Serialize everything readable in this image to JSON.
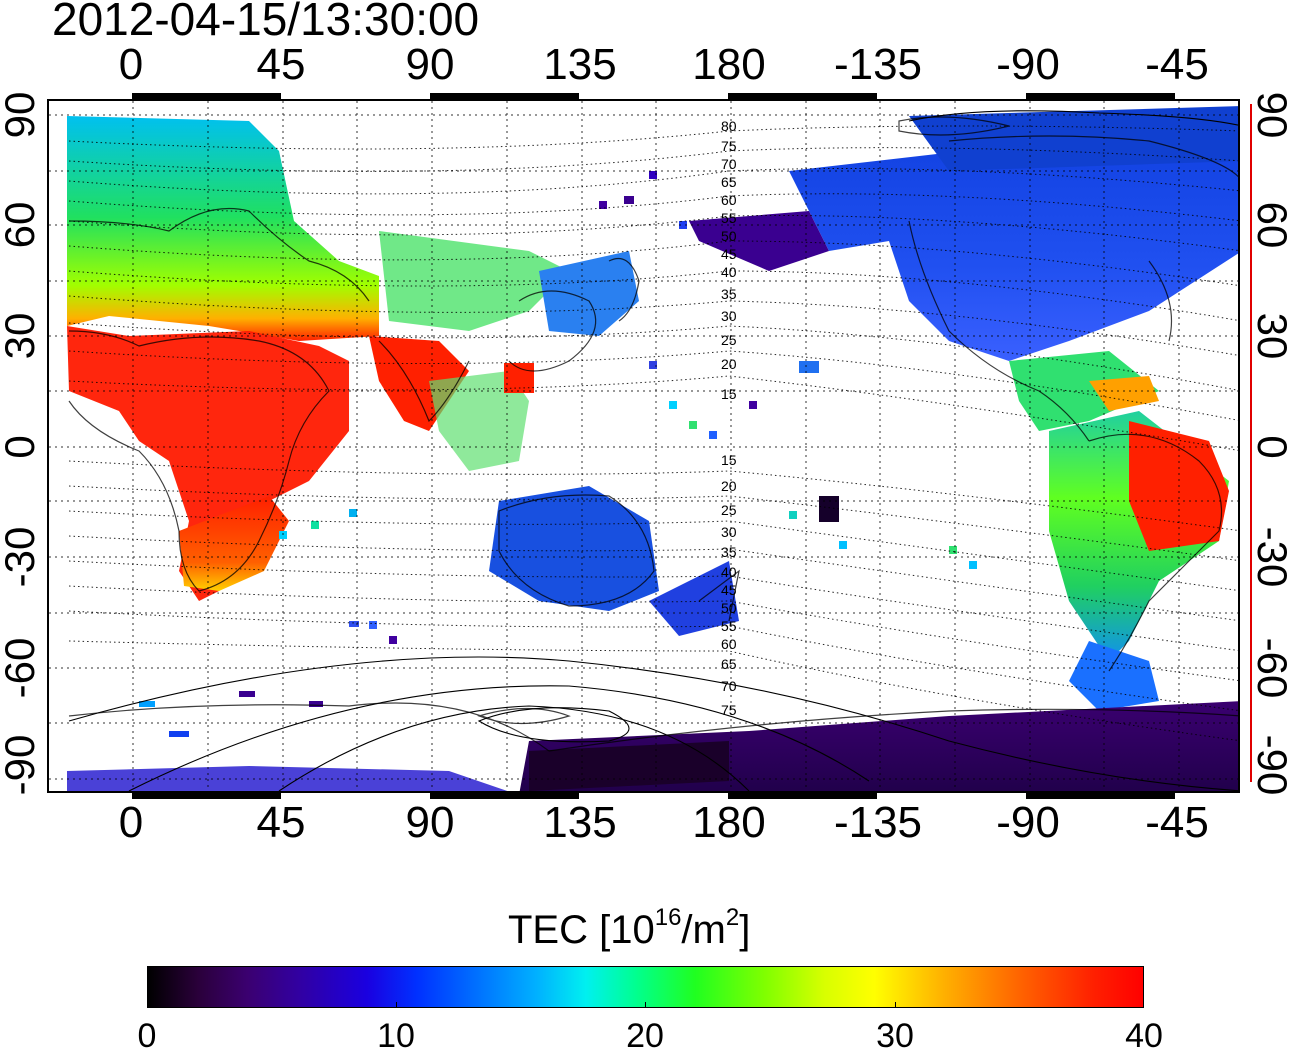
{
  "title": "2012-04-15/13:30:00",
  "lon_labels": [
    "0",
    "45",
    "90",
    "135",
    "180",
    "-135",
    "-90",
    "-45"
  ],
  "lat_labels": [
    "90",
    "60",
    "30",
    "0",
    "-30",
    "-60",
    "-90"
  ],
  "contour_labels_north": [
    "80",
    "75",
    "70",
    "65",
    "60",
    "55",
    "50",
    "45",
    "40",
    "35",
    "30",
    "25",
    "20",
    "15"
  ],
  "contour_labels_south": [
    "15",
    "20",
    "25",
    "30",
    "35",
    "40",
    "45",
    "50",
    "55",
    "60",
    "65",
    "70",
    "75"
  ],
  "colorbar": {
    "title": "TEC  [10",
    "title_sup": "16",
    "title_mid": "/m",
    "title_sup2": "2",
    "title_end": "]",
    "ticks": [
      "0",
      "10",
      "20",
      "30",
      "40"
    ]
  },
  "colors": {
    "high": "#ff1a00",
    "mid": "#30ff30",
    "low": "#1530e0",
    "very_low": "#3a0060",
    "scale_line": "#e00000"
  }
}
